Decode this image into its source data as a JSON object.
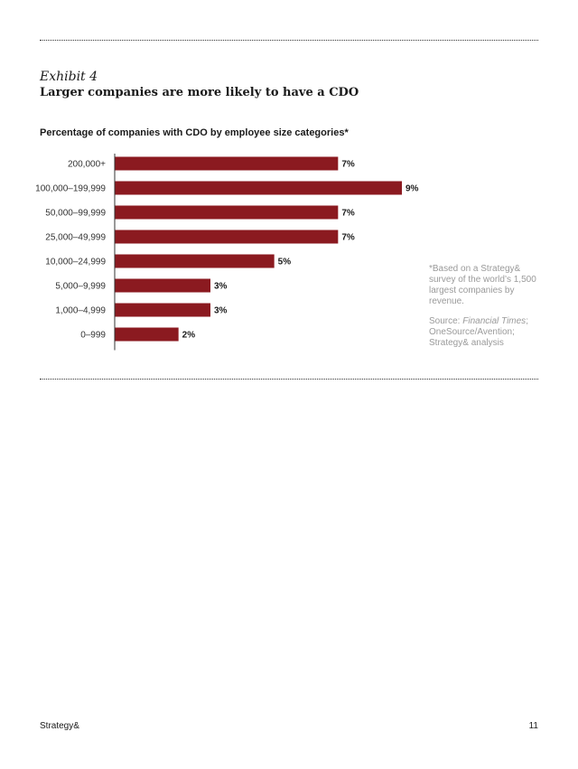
{
  "exhibit": {
    "label": "Exhibit 4",
    "title": "Larger companies are more likely to have a CDO"
  },
  "chart_data": {
    "type": "bar",
    "orientation": "horizontal",
    "title": "Percentage of companies with CDO by employee size categories*",
    "categories": [
      "200,000+",
      "100,000–199,999",
      "50,000–99,999",
      "25,000–49,999",
      "10,000–24,999",
      "5,000–9,999",
      "1,000–4,999",
      "0–999"
    ],
    "values": [
      7,
      9,
      7,
      7,
      5,
      3,
      3,
      2
    ],
    "value_labels": [
      "7%",
      "9%",
      "7%",
      "7%",
      "5%",
      "3%",
      "3%",
      "2%"
    ],
    "xlim": [
      0,
      9
    ],
    "grid": false,
    "bar_color": "#8b1a20"
  },
  "notes": {
    "footnote": "*Based on a Strategy& survey of the world’s 1,500 largest companies by revenue.",
    "source_prefix": "Source: ",
    "source_italic": "Financial Times",
    "source_suffix": "; OneSource/Avention; Strategy& analysis"
  },
  "footer": {
    "brand": "Strategy&",
    "page_number": "11"
  }
}
